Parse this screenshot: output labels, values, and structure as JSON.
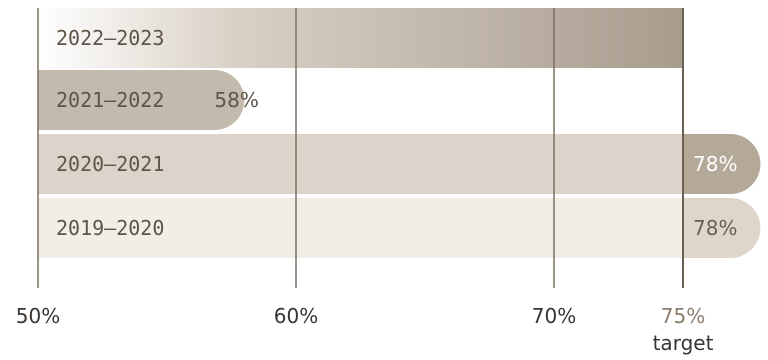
{
  "chart_data": {
    "type": "bar",
    "orientation": "horizontal",
    "categories": [
      "2022–2023",
      "2021–2022",
      "2020–2021",
      "2019–2020"
    ],
    "values": [
      75,
      58,
      78,
      78
    ],
    "value_labels": [
      "",
      "58%",
      "78%",
      "78%"
    ],
    "xlim": [
      50,
      78
    ],
    "xticks": [
      {
        "value": 50,
        "label": "50%"
      },
      {
        "value": 60,
        "label": "60%"
      },
      {
        "value": 70,
        "label": "70%"
      },
      {
        "value": 75,
        "label": "75%",
        "sublabel": "target"
      }
    ],
    "grid": true,
    "bar_colors": [
      "#a89c8e",
      "#c3b9ad",
      "#b4a899",
      "#ded6cb"
    ],
    "track_colors": [
      "none",
      "none",
      "#dcd4ca",
      "#f1ede7"
    ],
    "target_color": "#6b6052"
  }
}
